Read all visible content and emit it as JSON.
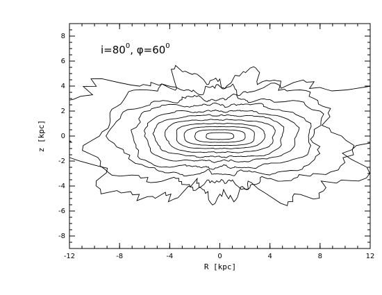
{
  "chart_data": {
    "type": "contour",
    "annotation": [
      "i=80",
      "0",
      ",  φ=60",
      "0"
    ],
    "xlabel": "R [kpc]",
    "ylabel": "z [kpc]",
    "xlim": [
      -12,
      12
    ],
    "ylim": [
      -9,
      9
    ],
    "xticks": [
      -12,
      -8,
      -4,
      0,
      4,
      8,
      12
    ],
    "yticks": [
      -8,
      -6,
      -4,
      -2,
      0,
      2,
      4,
      6,
      8
    ]
  }
}
